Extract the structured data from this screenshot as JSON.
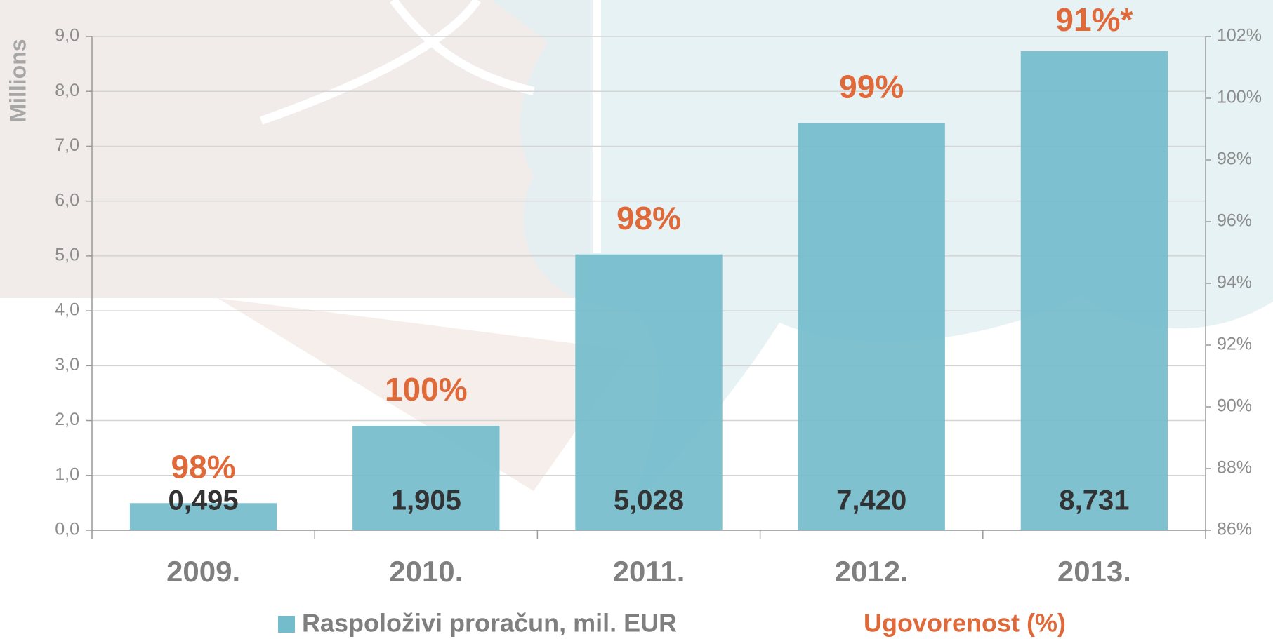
{
  "chart_data": {
    "type": "bar",
    "y_label": "Millions",
    "categories": [
      "2009.",
      "2010.",
      "2011.",
      "2012.",
      "2013."
    ],
    "series": [
      {
        "name": "Raspoloživi proračun, mil. EUR",
        "color": "#74bccb",
        "values": [
          0.495,
          1.905,
          5.028,
          7.42,
          8.731
        ],
        "value_labels": [
          "0,495",
          "1,905",
          "5,028",
          "7,420",
          "8,731"
        ]
      },
      {
        "name": "Ugovorenost (%)",
        "color": "#e0693a",
        "axis": "y2",
        "values": [
          98,
          100,
          98,
          99,
          91
        ],
        "value_labels": [
          "98%",
          "100%",
          "98%",
          "99%",
          "91%*"
        ]
      }
    ],
    "ylim": [
      0,
      9
    ],
    "yticks": [
      {
        "value": 0,
        "label": "0,0"
      },
      {
        "value": 1,
        "label": "1,0"
      },
      {
        "value": 2,
        "label": "2,0"
      },
      {
        "value": 3,
        "label": "3,0"
      },
      {
        "value": 4,
        "label": "4,0"
      },
      {
        "value": 5,
        "label": "5,0"
      },
      {
        "value": 6,
        "label": "6,0"
      },
      {
        "value": 7,
        "label": "7,0"
      },
      {
        "value": 8,
        "label": "8,0"
      },
      {
        "value": 9,
        "label": "9,0"
      }
    ],
    "y2lim": [
      86,
      102
    ],
    "y2ticks": [
      {
        "value": 86,
        "label": "86%"
      },
      {
        "value": 88,
        "label": "88%"
      },
      {
        "value": 90,
        "label": "90%"
      },
      {
        "value": 92,
        "label": "92%"
      },
      {
        "value": 94,
        "label": "94%"
      },
      {
        "value": 96,
        "label": "96%"
      },
      {
        "value": 98,
        "label": "98%"
      },
      {
        "value": 100,
        "label": "100%"
      },
      {
        "value": 102,
        "label": "102%"
      }
    ],
    "grid": true
  }
}
